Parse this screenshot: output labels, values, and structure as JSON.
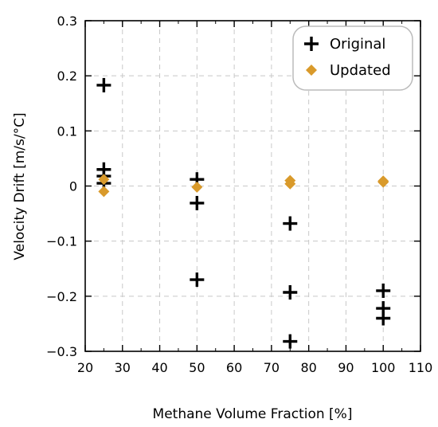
{
  "chart_data": {
    "type": "scatter",
    "xlabel": "Methane Volume Fraction [%]",
    "ylabel": "Velocity Drift [m/s/°C]",
    "xlim": [
      20,
      110
    ],
    "ylim": [
      -0.3,
      0.3
    ],
    "xticks": [
      20,
      30,
      40,
      50,
      60,
      70,
      80,
      90,
      100,
      110
    ],
    "yticks": [
      -0.3,
      -0.2,
      -0.1,
      0,
      0.1,
      0.2,
      0.3
    ],
    "ytick_labels": [
      "−0.3",
      "−0.2",
      "−0.1",
      "0",
      "0.1",
      "0.2",
      "0.3"
    ],
    "grid": true,
    "legend_position": "top-right",
    "series": [
      {
        "name": "Original",
        "marker": "plus",
        "color": "#000000",
        "points": [
          [
            25,
            0.183
          ],
          [
            25,
            0.03
          ],
          [
            25,
            0.018
          ],
          [
            25,
            0.005
          ],
          [
            50,
            0.012
          ],
          [
            50,
            -0.031
          ],
          [
            50,
            -0.17
          ],
          [
            75,
            -0.068
          ],
          [
            75,
            -0.193
          ],
          [
            75,
            -0.282
          ],
          [
            100,
            -0.19
          ],
          [
            100,
            -0.222
          ],
          [
            100,
            -0.24
          ]
        ]
      },
      {
        "name": "Updated",
        "marker": "diamond",
        "color": "#D99A2B",
        "points": [
          [
            25,
            0.012
          ],
          [
            25,
            -0.01
          ],
          [
            50,
            -0.002
          ],
          [
            75,
            0.01
          ],
          [
            75,
            0.004
          ],
          [
            100,
            0.009
          ],
          [
            100,
            0.007
          ]
        ]
      }
    ]
  }
}
